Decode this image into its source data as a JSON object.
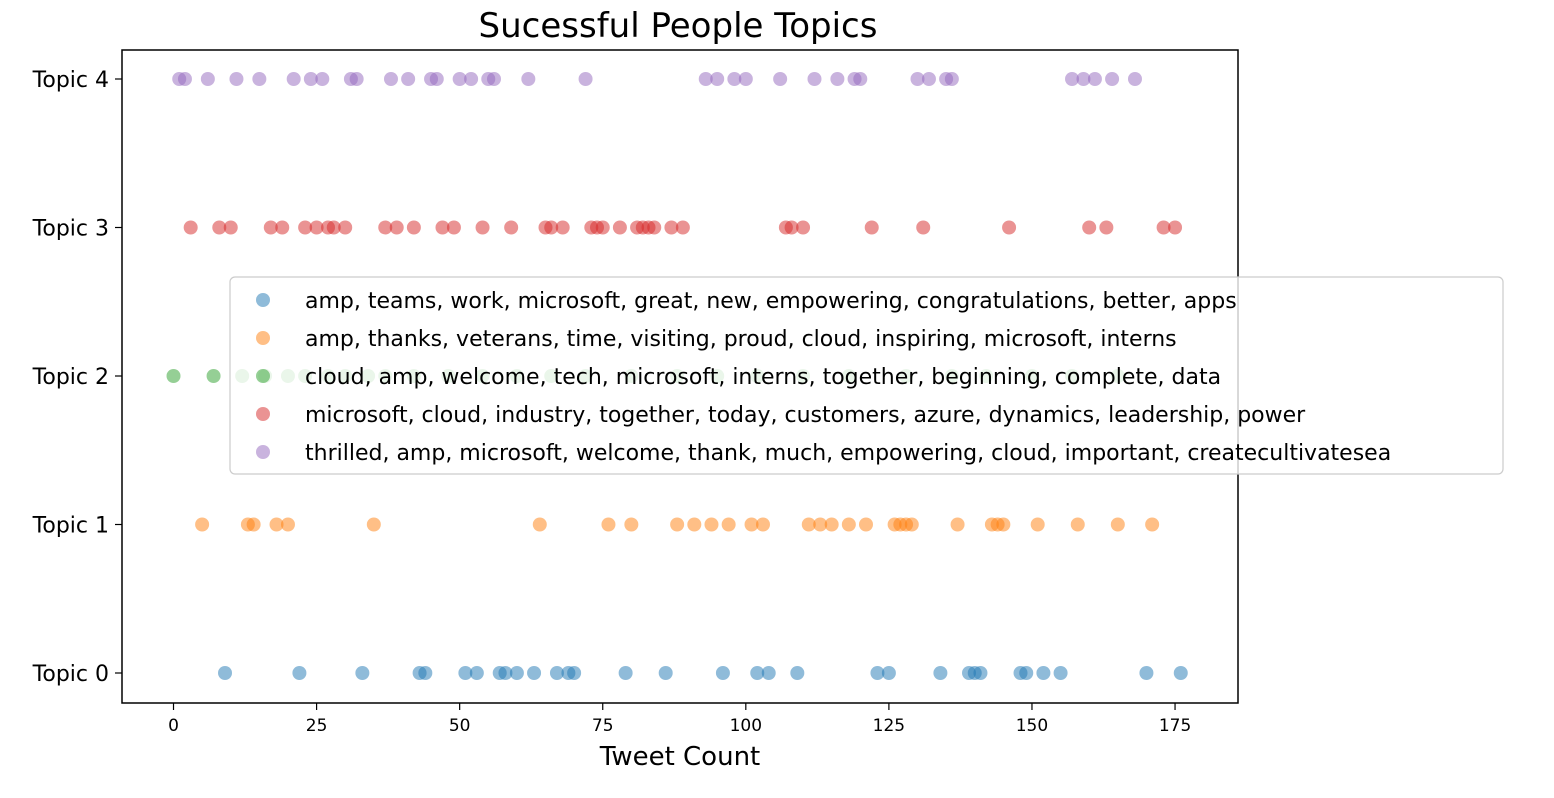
{
  "chart_data": {
    "type": "scatter",
    "title": "Sucessful People Topics",
    "xlabel": "Tweet Count",
    "ylabel": "",
    "xlim": [
      -9,
      186
    ],
    "x_ticks": [
      0,
      25,
      50,
      75,
      100,
      125,
      150,
      175
    ],
    "categories": [
      "Topic 0",
      "Topic 1",
      "Topic 2",
      "Topic 3",
      "Topic 4"
    ],
    "grid": false,
    "legend_position": "center-right",
    "series": [
      {
        "name": "amp, teams, work, microsoft, great, new, empowering, congratulations, better, apps",
        "color": "#1f77b4",
        "y": "Topic 0",
        "x": [
          9,
          22,
          33,
          43,
          44,
          51,
          53,
          57,
          58,
          60,
          63,
          67,
          69,
          70,
          79,
          86,
          96,
          102,
          104,
          109,
          123,
          125,
          134,
          139,
          140,
          141,
          148,
          149,
          152,
          155,
          170,
          176
        ]
      },
      {
        "name": "amp, thanks, veterans, time, visiting, proud, cloud, inspiring, microsoft, interns",
        "color": "#ff7f0e",
        "y": "Topic 1",
        "x": [
          5,
          13,
          14,
          18,
          20,
          35,
          64,
          76,
          80,
          88,
          91,
          94,
          97,
          101,
          103,
          111,
          113,
          115,
          118,
          121,
          126,
          127,
          128,
          129,
          137,
          143,
          144,
          145,
          151,
          158,
          165,
          171
        ]
      },
      {
        "name": "cloud, amp, welcome, tech, microsoft, interns, together, beginning, complete, data",
        "color": "#2ca02c",
        "y": "Topic 2",
        "x": [
          0,
          7,
          12,
          16,
          20,
          23,
          27,
          30,
          34,
          37,
          42,
          48,
          54,
          60,
          66,
          72,
          80,
          88,
          95,
          102,
          110,
          118,
          128,
          136,
          142,
          150,
          157,
          165
        ]
      },
      {
        "name": "microsoft, cloud, industry, together, today, customers, azure, dynamics, leadership, power",
        "color": "#d62728",
        "y": "Topic 3",
        "x": [
          3,
          8,
          10,
          17,
          19,
          23,
          25,
          27,
          28,
          30,
          37,
          39,
          42,
          47,
          49,
          54,
          59,
          65,
          66,
          68,
          73,
          74,
          75,
          78,
          81,
          82,
          83,
          84,
          87,
          89,
          107,
          108,
          110,
          122,
          131,
          146,
          160,
          163,
          173,
          175
        ]
      },
      {
        "name": "thrilled, amp, microsoft, welcome, thank, much, empowering, cloud, important, createcultivatesea",
        "color": "#9467bd",
        "y": "Topic 4",
        "x": [
          1,
          2,
          6,
          11,
          15,
          21,
          24,
          26,
          31,
          32,
          38,
          41,
          45,
          46,
          50,
          52,
          55,
          56,
          62,
          72,
          93,
          95,
          98,
          100,
          106,
          112,
          116,
          119,
          120,
          130,
          132,
          135,
          136,
          157,
          159,
          161,
          164,
          168
        ]
      }
    ]
  }
}
